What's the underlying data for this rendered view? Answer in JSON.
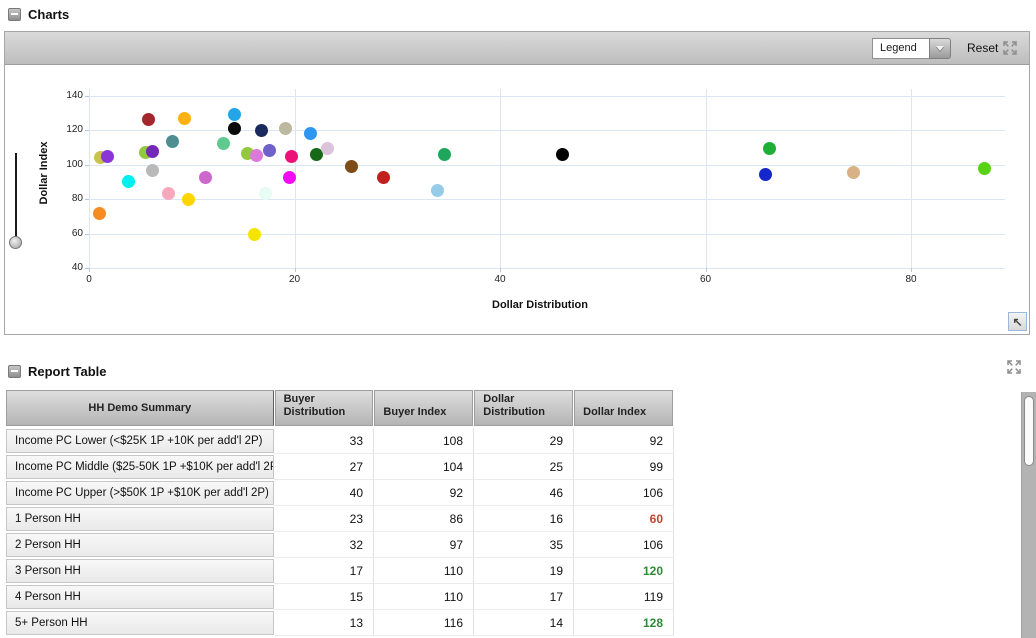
{
  "charts_panel": {
    "title": "Charts",
    "toolbar": {
      "legend_label": "Legend",
      "reset_label": "Reset"
    },
    "restore_icon_glyph": "↖",
    "chart_data": {
      "type": "scatter",
      "title": "",
      "xlabel": "Dollar Distribution",
      "ylabel": "Dollar Index",
      "xlim": [
        0,
        90.7
      ],
      "ylim": [
        40,
        144
      ],
      "xticks": [
        0,
        20,
        40,
        60,
        80
      ],
      "yticks": [
        40,
        60,
        80,
        100,
        120,
        140
      ],
      "grid": true,
      "legend_position": "hidden",
      "points": [
        {
          "x": 1.0,
          "y": 71.5,
          "color": "#f68b1f"
        },
        {
          "x": 1.1,
          "y": 104.3,
          "color": "#c9c24e"
        },
        {
          "x": 1.8,
          "y": 104.5,
          "color": "#8a36d6"
        },
        {
          "x": 3.8,
          "y": 90.0,
          "color": "#00efef"
        },
        {
          "x": 5.5,
          "y": 107.2,
          "color": "#93c93c"
        },
        {
          "x": 6.2,
          "y": 107.5,
          "color": "#7229b8"
        },
        {
          "x": 5.8,
          "y": 126.5,
          "color": "#a3282e"
        },
        {
          "x": 6.2,
          "y": 96.5,
          "color": "#b9b9b9"
        },
        {
          "x": 7.7,
          "y": 83.0,
          "color": "#f7a8bc"
        },
        {
          "x": 8.1,
          "y": 113.5,
          "color": "#4e8e90"
        },
        {
          "x": 9.3,
          "y": 126.6,
          "color": "#ffb012"
        },
        {
          "x": 9.7,
          "y": 80.0,
          "color": "#ffd400"
        },
        {
          "x": 11.3,
          "y": 92.8,
          "color": "#cc67cc"
        },
        {
          "x": 13.1,
          "y": 112.4,
          "color": "#5fc98f"
        },
        {
          "x": 14.2,
          "y": 129.2,
          "color": "#22a6e8"
        },
        {
          "x": 14.2,
          "y": 121.3,
          "color": "#0b0b0b"
        },
        {
          "x": 15.4,
          "y": 106.8,
          "color": "#93c93c"
        },
        {
          "x": 16.3,
          "y": 105.4,
          "color": "#dc7adc"
        },
        {
          "x": 16.1,
          "y": 59.5,
          "color": "#f5e400"
        },
        {
          "x": 16.8,
          "y": 119.9,
          "color": "#1a2a5e"
        },
        {
          "x": 17.2,
          "y": 83.0,
          "color": "#e7fcf2"
        },
        {
          "x": 17.6,
          "y": 108.5,
          "color": "#6e61c8"
        },
        {
          "x": 19.1,
          "y": 120.8,
          "color": "#bdb9a1"
        },
        {
          "x": 19.7,
          "y": 104.8,
          "color": "#ec1277"
        },
        {
          "x": 19.5,
          "y": 92.4,
          "color": "#f50af5"
        },
        {
          "x": 21.6,
          "y": 118.4,
          "color": "#2f95f2"
        },
        {
          "x": 22.1,
          "y": 106.1,
          "color": "#176917"
        },
        {
          "x": 23.2,
          "y": 109.2,
          "color": "#dcc3dc"
        },
        {
          "x": 25.5,
          "y": 99.0,
          "color": "#7d4b16"
        },
        {
          "x": 28.7,
          "y": 92.3,
          "color": "#c21f1f"
        },
        {
          "x": 33.9,
          "y": 85.3,
          "color": "#96cce8"
        },
        {
          "x": 34.6,
          "y": 105.9,
          "color": "#1ea75c"
        },
        {
          "x": 46.1,
          "y": 106.0,
          "color": "#000000"
        },
        {
          "x": 66.2,
          "y": 109.6,
          "color": "#1fae36"
        },
        {
          "x": 65.8,
          "y": 94.6,
          "color": "#1526cc"
        },
        {
          "x": 74.4,
          "y": 95.7,
          "color": "#d8b185"
        },
        {
          "x": 87.1,
          "y": 97.9,
          "color": "#56d413"
        }
      ]
    }
  },
  "report_table": {
    "title": "Report Table",
    "columns": [
      "HH Demo Summary",
      "Buyer Distribution",
      "Buyer Index",
      "Dollar Distribution",
      "Dollar Index"
    ],
    "highlight_colors": {
      "low": "#c7432f",
      "high": "#2e8b34"
    },
    "rows": [
      {
        "label": "Income PC Lower (<$25K 1P +10K per add'l 2P)",
        "buyer_distribution": 33,
        "buyer_index": 108,
        "dollar_distribution": 29,
        "dollar_index": 92,
        "dollar_index_highlight": null
      },
      {
        "label": "Income PC Middle ($25-50K 1P +$10K per add'l 2P)",
        "buyer_distribution": 27,
        "buyer_index": 104,
        "dollar_distribution": 25,
        "dollar_index": 99,
        "dollar_index_highlight": null
      },
      {
        "label": "Income PC Upper (>$50K 1P +$10K per add'l 2P)",
        "buyer_distribution": 40,
        "buyer_index": 92,
        "dollar_distribution": 46,
        "dollar_index": 106,
        "dollar_index_highlight": null
      },
      {
        "label": "1 Person HH",
        "buyer_distribution": 23,
        "buyer_index": 86,
        "dollar_distribution": 16,
        "dollar_index": 60,
        "dollar_index_highlight": "low"
      },
      {
        "label": "2 Person HH",
        "buyer_distribution": 32,
        "buyer_index": 97,
        "dollar_distribution": 35,
        "dollar_index": 106,
        "dollar_index_highlight": null
      },
      {
        "label": "3 Person HH",
        "buyer_distribution": 17,
        "buyer_index": 110,
        "dollar_distribution": 19,
        "dollar_index": 120,
        "dollar_index_highlight": "high"
      },
      {
        "label": "4 Person HH",
        "buyer_distribution": 15,
        "buyer_index": 110,
        "dollar_distribution": 17,
        "dollar_index": 119,
        "dollar_index_highlight": null
      },
      {
        "label": "5+ Person HH",
        "buyer_distribution": 13,
        "buyer_index": 116,
        "dollar_distribution": 14,
        "dollar_index": 128,
        "dollar_index_highlight": "high"
      }
    ]
  }
}
